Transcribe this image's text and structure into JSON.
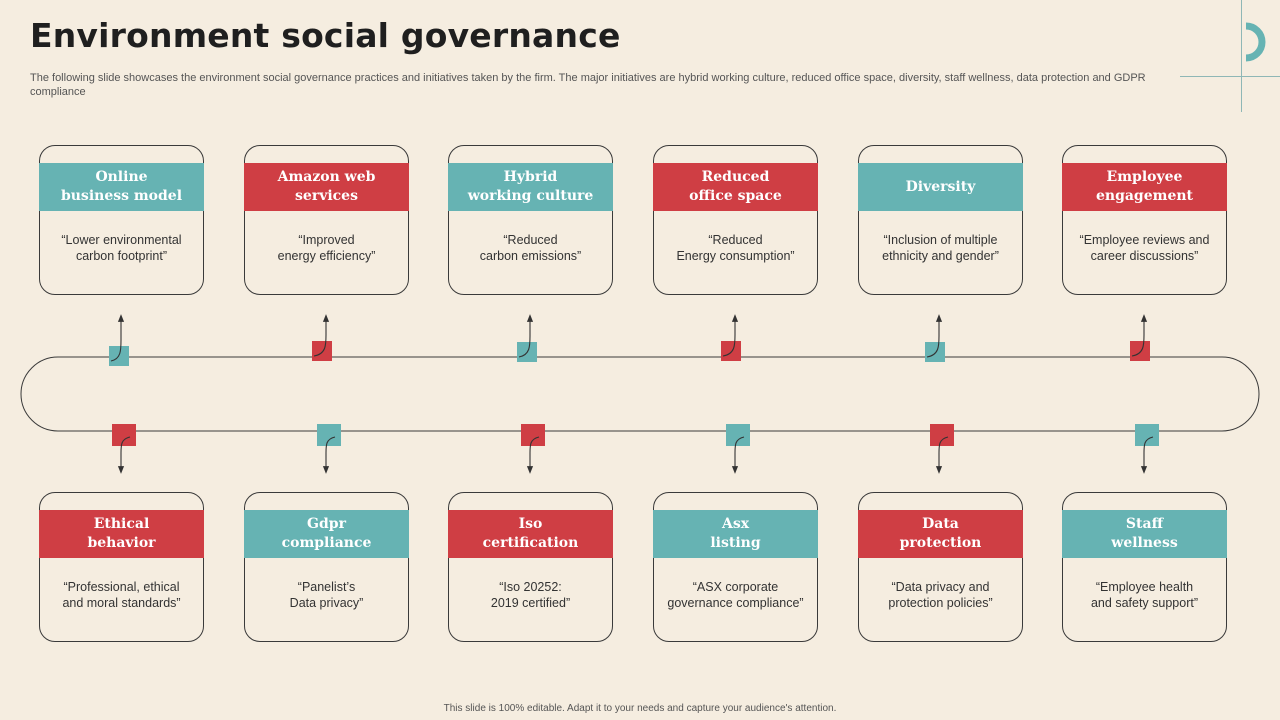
{
  "header": {
    "title": "Environment social governance",
    "subtitle": "The following slide showcases the environment social governance practices and initiatives taken by the firm. The major initiatives are hybrid working culture, reduced office space, diversity,  staff wellness, data protection and GDPR compliance"
  },
  "colors": {
    "teal": "#66b3b3",
    "red": "#cf3e44",
    "background": "#f5ede0"
  },
  "top_cards": [
    {
      "title": "Online\nbusiness model",
      "desc": "“Lower environmental\ncarbon footprint”",
      "color": "teal"
    },
    {
      "title": "Amazon web\nservices",
      "desc": "“Improved\nenergy efficiency”",
      "color": "red"
    },
    {
      "title": "Hybrid\nworking culture",
      "desc": "“Reduced\ncarbon emissions”",
      "color": "teal"
    },
    {
      "title": "Reduced\noffice space",
      "desc": "“Reduced\nEnergy consumption”",
      "color": "red"
    },
    {
      "title": "Diversity",
      "desc": "“Inclusion of multiple\nethnicity and gender”",
      "color": "teal"
    },
    {
      "title": "Employee\nengagement",
      "desc": "“Employee reviews  and\ncareer discussions”",
      "color": "red"
    }
  ],
  "bottom_cards": [
    {
      "title": "Ethical\nbehavior",
      "desc": "“Professional,  ethical\nand moral standards”",
      "color": "red"
    },
    {
      "title": "Gdpr\ncompliance",
      "desc": "“Panelist’s\nData privacy”",
      "color": "teal"
    },
    {
      "title": "Iso\ncertification",
      "desc": "“Iso 20252:\n2019 certified”",
      "color": "red"
    },
    {
      "title": "Asx\nlisting",
      "desc": "“ASX corporate\ngovernance  compliance”",
      "color": "teal"
    },
    {
      "title": "Data\nprotection",
      "desc": "“Data privacy and\nprotection policies”",
      "color": "red"
    },
    {
      "title": "Staff\nwellness",
      "desc": "“Employee health\nand safety support”",
      "color": "teal"
    }
  ],
  "footer": "This slide is 100% editable.  Adapt it to your needs and capture your audience's attention."
}
